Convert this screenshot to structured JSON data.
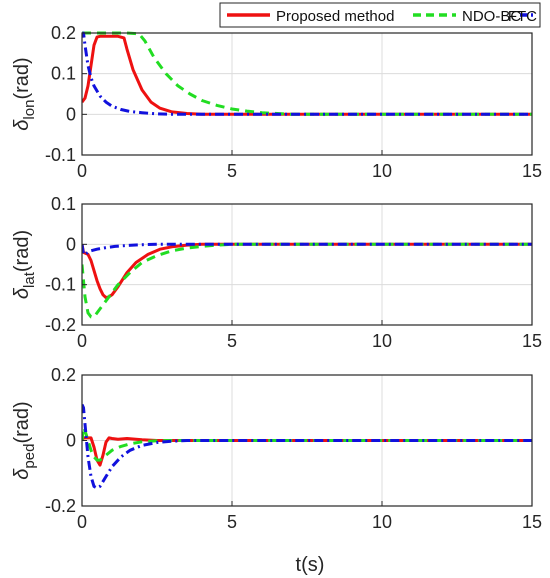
{
  "colors": {
    "series": [
      "#ee1111",
      "#22dd22",
      "#1111dd"
    ],
    "axis": "#262626",
    "grid": "#dcdcdc"
  },
  "legend": {
    "placement": "top",
    "entries": [
      "Proposed method",
      "NDO-BC",
      "FTC"
    ]
  },
  "xlabel": "t(s)",
  "chart_data": [
    {
      "type": "line",
      "ylabel": {
        "main": "δ",
        "sub": "lon",
        "unit": "(rad)"
      },
      "xlim": [
        0,
        15
      ],
      "ylim": [
        -0.1,
        0.2
      ],
      "xticks": [
        0,
        5,
        10,
        15
      ],
      "yticks": [
        -0.1,
        0,
        0.1,
        0.2
      ],
      "ytick_labels": [
        "-0.1",
        "0",
        "0.1",
        "0.2"
      ],
      "grid": true,
      "series": [
        {
          "name": "Proposed method",
          "x": [
            0,
            0.1,
            0.2,
            0.3,
            0.4,
            0.5,
            0.6,
            0.8,
            1.0,
            1.2,
            1.4,
            1.5,
            1.7,
            2.0,
            2.3,
            2.6,
            3.0,
            3.5,
            4.0,
            5.0,
            15.0
          ],
          "y": [
            0.03,
            0.04,
            0.07,
            0.12,
            0.17,
            0.19,
            0.192,
            0.192,
            0.192,
            0.192,
            0.188,
            0.16,
            0.11,
            0.06,
            0.03,
            0.015,
            0.006,
            0.002,
            0.0,
            0.0,
            0.0
          ]
        },
        {
          "name": "NDO-BC",
          "x": [
            0,
            0.05,
            0.1,
            0.3,
            0.6,
            1.0,
            1.5,
            1.9,
            2.1,
            2.4,
            2.8,
            3.2,
            3.6,
            4.0,
            4.5,
            5.0,
            5.5,
            6.0,
            7.0,
            15.0
          ],
          "y": [
            0.2,
            0.2,
            0.2,
            0.2,
            0.2,
            0.2,
            0.2,
            0.198,
            0.18,
            0.14,
            0.1,
            0.07,
            0.05,
            0.034,
            0.022,
            0.013,
            0.008,
            0.004,
            0.0,
            0.0
          ]
        },
        {
          "name": "FTC",
          "x": [
            0,
            0.05,
            0.1,
            0.2,
            0.3,
            0.4,
            0.6,
            0.8,
            1.0,
            1.3,
            1.6,
            2.0,
            2.5,
            3.0,
            3.5,
            15.0
          ],
          "y": [
            0.19,
            0.2,
            0.17,
            0.12,
            0.09,
            0.07,
            0.045,
            0.03,
            0.02,
            0.012,
            0.007,
            0.004,
            0.001,
            0.0,
            0.0,
            0.0
          ]
        }
      ]
    },
    {
      "type": "line",
      "ylabel": {
        "main": "δ",
        "sub": "lat",
        "unit": "(rad)"
      },
      "xlim": [
        0,
        15
      ],
      "ylim": [
        -0.2,
        0.1
      ],
      "xticks": [
        0,
        5,
        10,
        15
      ],
      "yticks": [
        -0.2,
        -0.1,
        0,
        0.1
      ],
      "ytick_labels": [
        "-0.2",
        "-0.1",
        "0",
        "0.1"
      ],
      "grid": true,
      "series": [
        {
          "name": "Proposed method",
          "x": [
            0,
            0.05,
            0.2,
            0.3,
            0.4,
            0.5,
            0.6,
            0.7,
            0.8,
            0.9,
            1.0,
            1.2,
            1.5,
            1.8,
            2.2,
            2.6,
            3.0,
            3.5,
            4.0,
            15.0
          ],
          "y": [
            0.0,
            -0.02,
            -0.025,
            -0.04,
            -0.065,
            -0.09,
            -0.11,
            -0.125,
            -0.132,
            -0.13,
            -0.125,
            -0.105,
            -0.07,
            -0.045,
            -0.025,
            -0.012,
            -0.006,
            -0.002,
            0.0,
            0.0
          ]
        },
        {
          "name": "NDO-BC",
          "x": [
            0,
            0.1,
            0.2,
            0.3,
            0.4,
            0.5,
            0.7,
            0.9,
            1.2,
            1.6,
            2.0,
            2.5,
            3.0,
            3.5,
            4.0,
            4.5,
            5.0,
            15.0
          ],
          "y": [
            -0.05,
            -0.13,
            -0.17,
            -0.18,
            -0.18,
            -0.17,
            -0.15,
            -0.13,
            -0.1,
            -0.07,
            -0.045,
            -0.028,
            -0.016,
            -0.009,
            -0.005,
            -0.002,
            0.0,
            0.0
          ]
        },
        {
          "name": "FTC",
          "x": [
            0,
            0.05,
            0.1,
            0.2,
            0.3,
            0.5,
            0.8,
            1.1,
            1.5,
            2.0,
            2.5,
            3.0,
            15.0
          ],
          "y": [
            0.0,
            -0.025,
            -0.025,
            -0.02,
            -0.016,
            -0.012,
            -0.008,
            -0.005,
            -0.003,
            -0.001,
            0.0,
            0.0,
            0.0
          ]
        }
      ]
    },
    {
      "type": "line",
      "ylabel": {
        "main": "δ",
        "sub": "ped",
        "unit": "(rad)"
      },
      "xlim": [
        0,
        15
      ],
      "ylim": [
        -0.2,
        0.2
      ],
      "xticks": [
        0,
        5,
        10,
        15
      ],
      "yticks": [
        -0.2,
        0,
        0.2
      ],
      "ytick_labels": [
        "-0.2",
        "0",
        "0.2"
      ],
      "grid": true,
      "series": [
        {
          "name": "Proposed method",
          "x": [
            0,
            0.05,
            0.3,
            0.4,
            0.5,
            0.6,
            0.7,
            0.8,
            0.9,
            1.0,
            1.2,
            1.5,
            2.0,
            2.5,
            15.0
          ],
          "y": [
            0.0,
            0.008,
            0.008,
            -0.02,
            -0.06,
            -0.075,
            -0.045,
            -0.005,
            0.008,
            0.006,
            0.004,
            0.006,
            0.002,
            0.0,
            0.0
          ]
        },
        {
          "name": "NDO-BC",
          "x": [
            0,
            0.05,
            0.1,
            0.2,
            0.3,
            0.4,
            0.5,
            0.6,
            0.8,
            1.0,
            1.3,
            1.6,
            2.0,
            2.5,
            3.0,
            15.0
          ],
          "y": [
            0.0,
            0.04,
            0.03,
            0.0,
            -0.03,
            -0.05,
            -0.06,
            -0.06,
            -0.045,
            -0.03,
            -0.018,
            -0.01,
            -0.004,
            -0.001,
            0.0,
            0.0
          ]
        },
        {
          "name": "FTC",
          "x": [
            0,
            0.05,
            0.1,
            0.2,
            0.3,
            0.4,
            0.5,
            0.6,
            0.8,
            1.0,
            1.3,
            1.6,
            2.0,
            2.5,
            3.0,
            3.5,
            15.0
          ],
          "y": [
            0.11,
            0.1,
            0.05,
            -0.05,
            -0.11,
            -0.14,
            -0.145,
            -0.14,
            -0.11,
            -0.08,
            -0.05,
            -0.03,
            -0.015,
            -0.006,
            -0.002,
            0.0,
            0.0
          ]
        }
      ]
    }
  ]
}
